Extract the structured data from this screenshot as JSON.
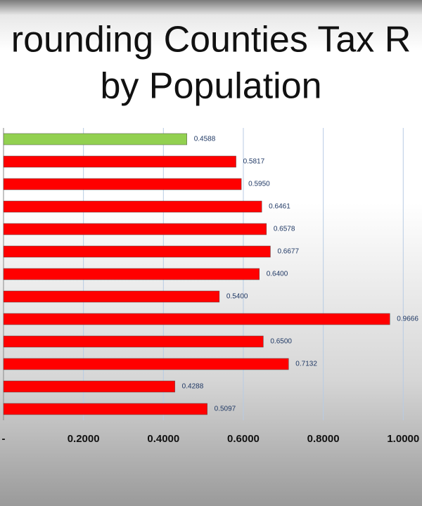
{
  "chart_data": {
    "type": "bar",
    "orientation": "horizontal",
    "title_lines": [
      "rounding Counties Tax R",
      "by Population"
    ],
    "categories": [
      null,
      null,
      null,
      null,
      null,
      null,
      null,
      null,
      null,
      null,
      null,
      null,
      null
    ],
    "values": [
      0.4588,
      0.5817,
      0.595,
      0.6461,
      0.6578,
      0.6677,
      0.64,
      0.54,
      0.9666,
      0.65,
      0.7132,
      0.4288,
      0.5097
    ],
    "value_labels": [
      "0.4588",
      "0.5817",
      "0.5950",
      "0.6461",
      "0.6578",
      "0.6677",
      "0.6400",
      "0.5400",
      "0.9666",
      "0.6500",
      "0.7132",
      "0.4288",
      "0.5097"
    ],
    "colors": [
      "#92d050",
      "#ff0000",
      "#ff0000",
      "#ff0000",
      "#ff0000",
      "#ff0000",
      "#ff0000",
      "#ff0000",
      "#ff0000",
      "#ff0000",
      "#ff0000",
      "#ff0000",
      "#ff0000"
    ],
    "xlim": [
      0,
      1.047
    ],
    "xticks": [
      {
        "value": 0,
        "label": "-"
      },
      {
        "value": 0.2,
        "label": "0.2000"
      },
      {
        "value": 0.4,
        "label": "0.4000"
      },
      {
        "value": 0.6,
        "label": "0.6000"
      },
      {
        "value": 0.8,
        "label": "0.8000"
      },
      {
        "value": 1.0,
        "label": "1.0000"
      }
    ],
    "grid": true
  }
}
